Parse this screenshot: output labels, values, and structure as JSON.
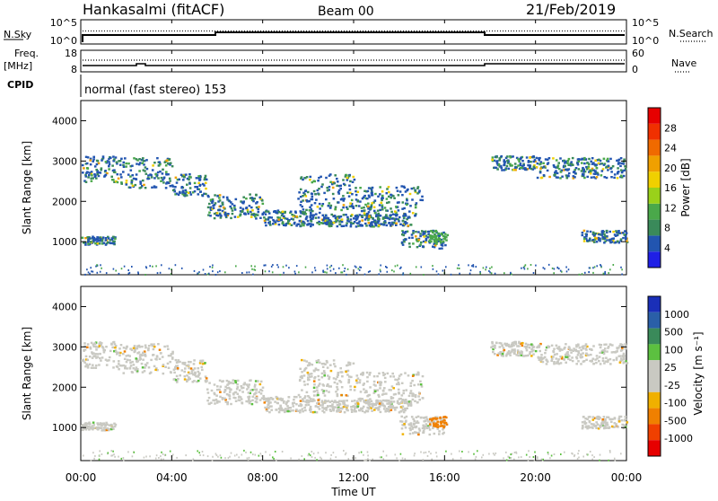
{
  "header": {
    "station": "Hankasalmi (fitACF)",
    "beam": "Beam 00",
    "date": "21/Feb/2019"
  },
  "panels": {
    "nsky": {
      "left_label": "N.Sky",
      "right_label": "N.Search",
      "left_ticks": [
        "10^5",
        "10^0"
      ],
      "right_ticks": [
        "10^5",
        "10^0"
      ]
    },
    "freq": {
      "left_label_1": "Freq.",
      "left_label_2": "[MHz]",
      "right_label": "Nave",
      "left_ticks": [
        "18",
        "8"
      ],
      "right_ticks": [
        "60",
        "0"
      ]
    },
    "cpid": {
      "label": "CPID",
      "text": "normal (fast stereo) 153"
    }
  },
  "colors": {
    "power": [
      "#1f1fe6",
      "#2255b0",
      "#3a8a5a",
      "#4aa84a",
      "#9ad11a",
      "#f0d000",
      "#f0a000",
      "#f06a00",
      "#f03000",
      "#e60000"
    ],
    "velocity": [
      "#1a2fb8",
      "#2a5fa8",
      "#3a8a5a",
      "#5cc040",
      "#c9c9c2",
      "#c9c9c2",
      "#f0b000",
      "#f08000",
      "#f04000",
      "#e60000"
    ],
    "ground_scatter": "#c9c9c2",
    "scatter_blue": "#2a4fc0",
    "scatter_green": "#3a9a4a",
    "scatter_yellow": "#d8c000"
  },
  "chart_data": [
    {
      "type": "heatmap",
      "name": "power",
      "xlabel": "",
      "ylabel": "Slant Range [km]",
      "xlim": [
        0,
        24
      ],
      "ylim": [
        180,
        4500
      ],
      "y_ticks": [
        1000,
        2000,
        3000,
        4000
      ],
      "colorbar": {
        "label": "Power [dB]",
        "range": [
          0,
          32
        ],
        "tick_labels": [
          "4",
          "8",
          "12",
          "16",
          "20",
          "24",
          "28"
        ]
      },
      "scatter_regions": [
        {
          "t0": 0.0,
          "t1": 1.5,
          "r_low": 2500,
          "r_high": 3150
        },
        {
          "t0": 1.5,
          "t1": 4.0,
          "r_low": 2350,
          "r_high": 3100
        },
        {
          "t0": 4.0,
          "t1": 5.5,
          "r_low": 2150,
          "r_high": 2700
        },
        {
          "t0": 5.5,
          "t1": 8.0,
          "r_low": 1600,
          "r_high": 2200
        },
        {
          "t0": 8.0,
          "t1": 10.5,
          "r_low": 1400,
          "r_high": 1800
        },
        {
          "t0": 9.5,
          "t1": 12.0,
          "r_low": 1800,
          "r_high": 2700
        },
        {
          "t0": 10.5,
          "t1": 14.5,
          "r_low": 1400,
          "r_high": 1700
        },
        {
          "t0": 12.0,
          "t1": 15.0,
          "r_low": 1600,
          "r_high": 2400
        },
        {
          "t0": 14.0,
          "t1": 16.0,
          "r_low": 850,
          "r_high": 1300
        },
        {
          "t0": 18.0,
          "t1": 20.0,
          "r_low": 2800,
          "r_high": 3150
        },
        {
          "t0": 20.0,
          "t1": 24.0,
          "r_low": 2600,
          "r_high": 3100
        },
        {
          "t0": 22.0,
          "t1": 24.0,
          "r_low": 1000,
          "r_high": 1300
        },
        {
          "t0": 0.0,
          "t1": 1.5,
          "r_low": 950,
          "r_high": 1150
        }
      ]
    },
    {
      "type": "heatmap",
      "name": "velocity",
      "xlabel": "Time UT",
      "ylabel": "Slant Range [km]",
      "xlim": [
        0,
        24
      ],
      "ylim": [
        180,
        4500
      ],
      "x_ticks": [
        0,
        4,
        8,
        12,
        16,
        20,
        24
      ],
      "x_tick_labels": [
        "00:00",
        "04:00",
        "08:00",
        "12:00",
        "16:00",
        "20:00",
        "00:00"
      ],
      "y_ticks": [
        1000,
        2000,
        3000,
        4000
      ],
      "colorbar": {
        "label": "Velocity [m s⁻¹]",
        "tick_labels": [
          "1000",
          "500",
          "100",
          "25",
          "-25",
          "-100",
          "-500",
          "-1000"
        ]
      }
    }
  ],
  "axis_labels": {
    "power_ylabel": "Slant Range [km]",
    "velocity_ylabel": "Slant Range [km]",
    "xlabel": "Time UT",
    "power_cbar": "Power [dB]",
    "velocity_cbar": "Velocity [m s⁻¹]"
  }
}
